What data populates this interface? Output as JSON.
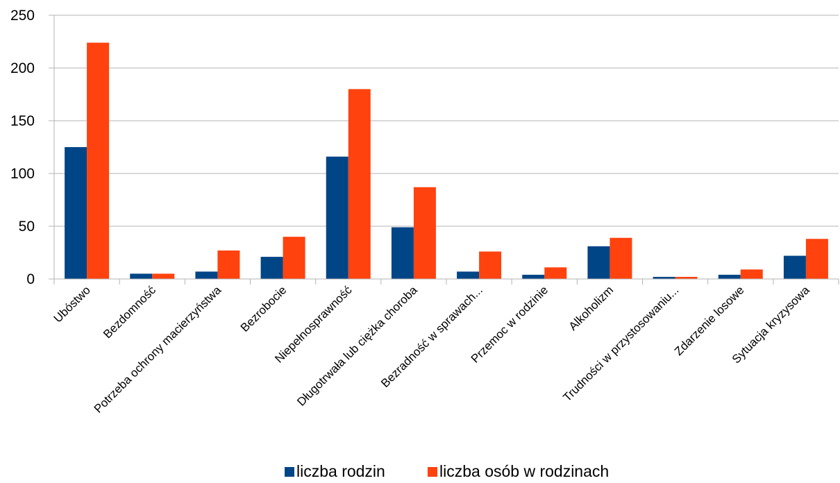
{
  "chart_data": {
    "type": "bar",
    "title": "",
    "xlabel": "",
    "ylabel": "",
    "ylim": [
      0,
      250
    ],
    "yticks": [
      0,
      50,
      100,
      150,
      200,
      250
    ],
    "grid": true,
    "legend_position": "bottom",
    "categories": [
      "Ubóstwo",
      "Bezdomność",
      "Potrzeba ochrony macierzyństwa",
      "Bezrobocie",
      "Niepełnosprawność",
      "Długotrwała lub ciężka choroba",
      "Bezradność w sprawach...",
      "Przemoc w rodzinie",
      "Alkoholizm",
      "Trudności w przystosowaniu...",
      "Zdarzenie losowe",
      "Sytuacja kryzysowa"
    ],
    "series": [
      {
        "name": "liczba rodzin",
        "color": "#004586",
        "values": [
          125,
          5,
          7,
          21,
          116,
          49,
          7,
          4,
          31,
          2,
          4,
          22
        ]
      },
      {
        "name": "liczba osób w rodzinach",
        "color": "#ff420e",
        "values": [
          224,
          5,
          27,
          40,
          180,
          87,
          26,
          11,
          39,
          2,
          9,
          38
        ]
      }
    ]
  }
}
